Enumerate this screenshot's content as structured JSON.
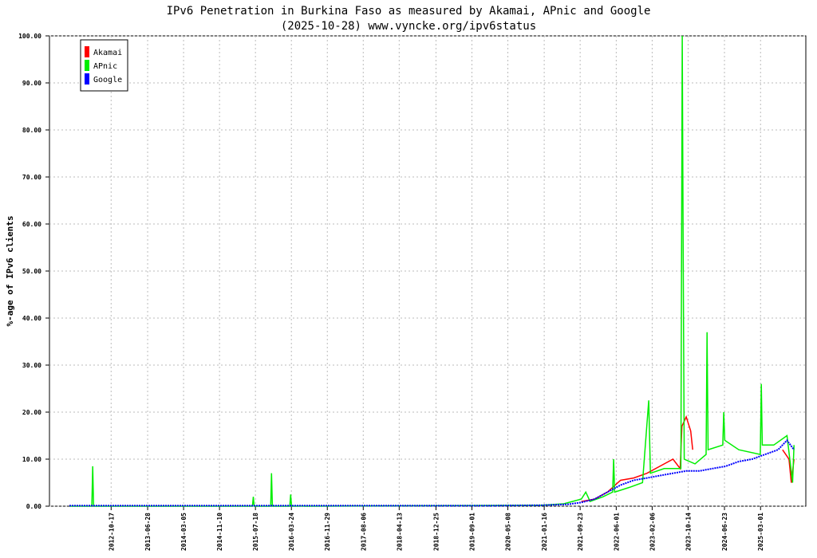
{
  "chart_data": {
    "type": "line",
    "title": "IPv6 Penetration in Burkina Faso as measured by Akamai, APnic and Google",
    "subtitle": "(2025-10-28) www.vyncke.org/ipv6status",
    "y_label": "%-age of IPv6 clients",
    "grid": true,
    "legend": "top-left",
    "xlim": [
      "2011-08-15",
      "2026-01-10"
    ],
    "xticks": [
      "2012-10-17",
      "2013-06-28",
      "2014-03-05",
      "2014-11-10",
      "2015-07-18",
      "2016-03-24",
      "2016-11-29",
      "2017-08-06",
      "2018-04-13",
      "2018-12-25",
      "2019-09-01",
      "2020-05-08",
      "2021-01-16",
      "2021-09-23",
      "2022-06-01",
      "2023-02-06",
      "2023-10-14",
      "2024-06-23",
      "2025-03-01"
    ],
    "ylim": [
      0,
      100
    ],
    "yticks": [
      {
        "value": 0,
        "label": "0.00"
      },
      {
        "value": 10,
        "label": "10.00"
      },
      {
        "value": 20,
        "label": "20.00"
      },
      {
        "value": 30,
        "label": "30.00"
      },
      {
        "value": 40,
        "label": "40.00"
      },
      {
        "value": 50,
        "label": "50.00"
      },
      {
        "value": 60,
        "label": "60.00"
      },
      {
        "value": 70,
        "label": "70.00"
      },
      {
        "value": 80,
        "label": "80.00"
      },
      {
        "value": 90,
        "label": "90.00"
      },
      {
        "value": 100,
        "label": "100.00"
      }
    ],
    "series": [
      {
        "name": "Akamai",
        "color": "#ff0000",
        "x": [
          "2021-10-01",
          "2022-01-01",
          "2022-04-01",
          "2022-07-01",
          "2022-10-01",
          "2023-01-01",
          "2023-04-01",
          "2023-07-01",
          "2023-08-20",
          "2023-09-01",
          "2023-10-01",
          "2023-11-01",
          "2023-11-15",
          "2024-06-01",
          "2025-08-01",
          "2025-09-15",
          "2025-10-01",
          "2025-10-20"
        ],
        "values": [
          1,
          1.5,
          3,
          5.5,
          6,
          7,
          8.5,
          10,
          8,
          17,
          19,
          16,
          12,
          null,
          12,
          10,
          5,
          10
        ]
      },
      {
        "name": "APnic",
        "color": "#00ee00",
        "x": [
          "2012-01-01",
          "2012-06-05",
          "2012-06-11",
          "2012-06-17",
          "2015-06-27",
          "2015-07-03",
          "2015-07-09",
          "2015-11-01",
          "2015-11-07",
          "2015-11-13",
          "2016-03-13",
          "2016-03-19",
          "2016-03-25",
          "2021-01-01",
          "2021-06-01",
          "2021-10-01",
          "2021-11-01",
          "2021-12-01",
          "2022-03-01",
          "2022-05-07",
          "2022-05-14",
          "2022-05-21",
          "2022-09-01",
          "2022-12-01",
          "2023-01-13",
          "2023-01-25",
          "2023-05-01",
          "2023-08-25",
          "2023-09-03",
          "2023-09-10",
          "2023-09-17",
          "2023-12-01",
          "2024-02-16",
          "2024-02-23",
          "2024-03-01",
          "2024-06-11",
          "2024-06-18",
          "2024-06-25",
          "2024-10-01",
          "2025-02-27",
          "2025-03-06",
          "2025-03-13",
          "2025-06-01",
          "2025-09-01",
          "2025-10-10",
          "2025-10-20"
        ],
        "values": [
          0,
          0,
          8.5,
          0,
          0,
          2,
          0,
          0,
          7,
          0,
          0,
          2.5,
          0,
          0.2,
          0.5,
          1.5,
          3,
          1,
          2,
          3,
          10,
          3,
          4,
          5,
          22.5,
          7,
          8,
          8,
          100,
          53,
          10,
          9,
          11,
          37,
          12,
          13,
          20,
          14,
          12,
          11,
          26,
          13,
          13,
          15,
          5,
          13
        ]
      },
      {
        "name": "Google",
        "color": "#0000ff",
        "x": [
          "2012-01-01",
          "2014-01-01",
          "2016-01-01",
          "2018-01-01",
          "2020-01-01",
          "2021-01-01",
          "2021-07-01",
          "2021-10-01",
          "2022-01-01",
          "2022-04-01",
          "2022-07-01",
          "2022-10-01",
          "2023-01-01",
          "2023-04-01",
          "2023-07-01",
          "2023-10-01",
          "2024-01-01",
          "2024-04-01",
          "2024-07-01",
          "2024-10-01",
          "2025-01-01",
          "2025-04-01",
          "2025-07-01",
          "2025-09-01",
          "2025-10-20"
        ],
        "values": [
          0.1,
          0.1,
          0.1,
          0.1,
          0.1,
          0.2,
          0.4,
          0.8,
          1.5,
          3,
          4.5,
          5.5,
          6,
          6.5,
          7,
          7.5,
          7.5,
          8,
          8.5,
          9.5,
          10,
          11,
          12,
          14,
          12
        ]
      }
    ]
  }
}
